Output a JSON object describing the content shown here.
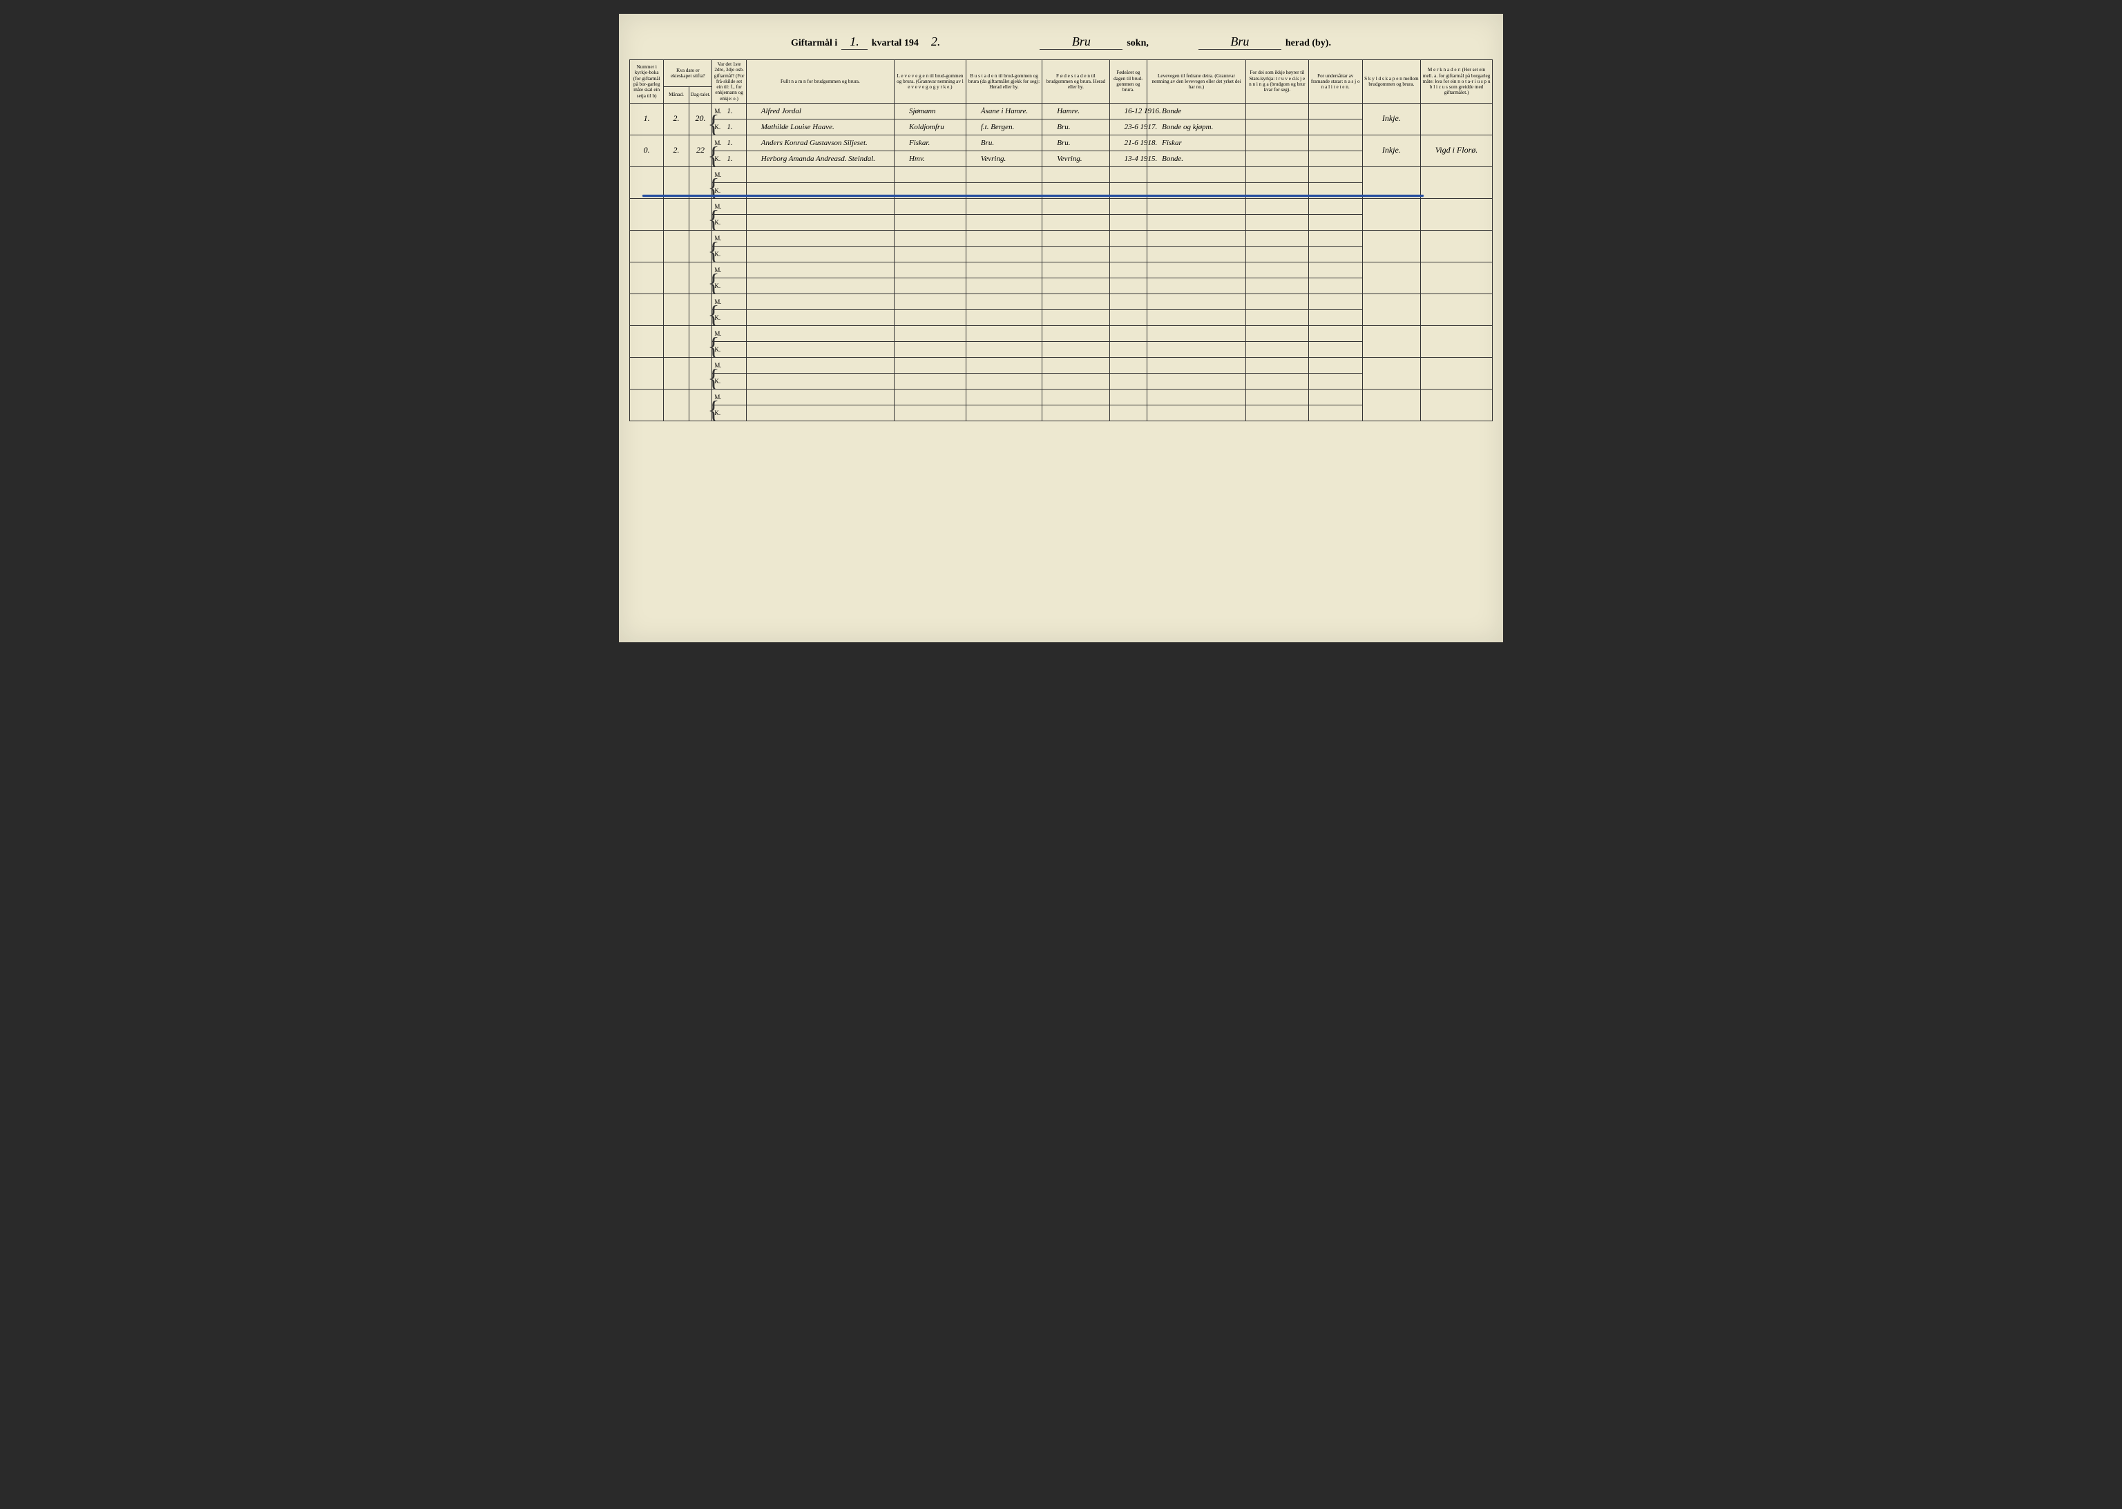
{
  "title": {
    "prefix": "Giftarmål i",
    "quarter": "1.",
    "mid": "kvartal 194",
    "year_digit": "2.",
    "sokn_val": "Bru",
    "sokn_label": "sokn,",
    "herad_val": "Bru",
    "herad_label": "herad (by)."
  },
  "headers": {
    "num": "Nummer i kyrkje-boka (for giftarmål på bor-garleg måte skal ein setja til b)",
    "dato": "Kva dato er ekteskapet stifta?",
    "mon": "Månad.",
    "dag": "Dag-talet.",
    "var": "Var det 1ste 2dre, 3dje osb. giftarmål? (For frå-skilde set ein til: f., for enkjemann og enkje: e.)",
    "name": "Fullt n a m n for brudgommen og brura.",
    "lev": "L e v e v e g e n til brud-gommen og brura. (Grannvar nemning av l e v e v e g  o g  y r k e.)",
    "bust": "B u s t a d e n til brud-gommen og brura (da giftarmålet gjekk for seg): Herad eller by.",
    "fod": "F ø d e s t a d e n til brudgommen og brura. Herad eller by.",
    "aar": "Fødeåret og dagen til brud-gommen og brura.",
    "fedr": "Levevegen til fedrane deira. (Grannvar nemning av den levevegen eller det yrket dei har no.)",
    "stat": "For dei som ikkje høyrer til Stats-kyrkja: t r u v e d-k j e n n i n g a (brudgom og brur kvar for seg).",
    "nasj": "For undersåttar av framande statar: n a s j o n a l i t e t e n.",
    "skyl": "S k y l d s k a p e n mellom brudgommen og brura.",
    "merk": "M e r k n a d e r: (Her set ein mell. a. for giftarmål på borgarleg måte: kva for ein n o t a-r i u s  p u b l i c u s som greidde med giftarmålet.)"
  },
  "rows": [
    {
      "num": "1.",
      "mon": "2.",
      "dag": "20.",
      "m": {
        "var": "1.",
        "name": "Alfred Jordal",
        "lev": "Sjømann",
        "bust": "Åsane i Hamre.",
        "fod": "Hamre.",
        "aar": "16-12 1916.",
        "fedr": "Bonde"
      },
      "k": {
        "var": "1.",
        "name": "Mathilde Louise Haave.",
        "lev": "Koldjomfru",
        "bust": "f.t. Bergen.",
        "fod": "Bru.",
        "aar": "23-6 1917.",
        "fedr": "Bonde og kjøpm."
      },
      "skyl": "Inkje.",
      "merk": ""
    },
    {
      "num": "0.",
      "mon": "2.",
      "dag": "22",
      "m": {
        "var": "1.",
        "name": "Anders Konrad Gustavson Siljeset.",
        "lev": "Fiskar.",
        "bust": "Bru.",
        "fod": "Bru.",
        "aar": "21-6 1918.",
        "fedr": "Fiskar"
      },
      "k": {
        "var": "1.",
        "name": "Herborg Amanda Andreasd. Steindal.",
        "lev": "Hmv.",
        "bust": "Vevring.",
        "fod": "Vevring.",
        "aar": "13-4 1915.",
        "fedr": "Bonde."
      },
      "skyl": "Inkje.",
      "merk": "Vigd i Florø."
    }
  ],
  "empty_rows": 8,
  "mk_labels": {
    "m": "M.",
    "k": "K."
  }
}
